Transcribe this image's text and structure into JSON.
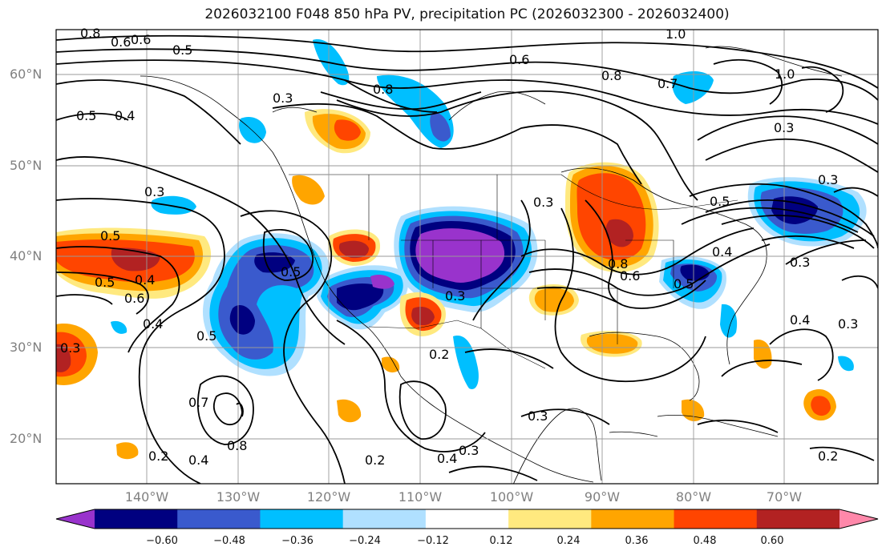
{
  "title": "2026032100 F048 850 hPa PV, precipitation PC (2026032300 - 2026032400)",
  "map": {
    "lat_labels": [
      "60°N",
      "50°N",
      "40°N",
      "30°N",
      "20°N"
    ],
    "lon_labels": [
      "140°W",
      "130°W",
      "120°W",
      "110°W",
      "100°W",
      "90°W",
      "80°W",
      "70°W"
    ],
    "contour_labels": [
      "0.8",
      "0.6",
      "0.6",
      "0.5",
      "0.5",
      "0.4",
      "0.3",
      "0.8",
      "0.6",
      "0.8",
      "0.7",
      "1.0",
      "0.3",
      "0.3",
      "0.5",
      "0.4",
      "0.5",
      "0.3",
      "0.5",
      "0.4",
      "0.5",
      "0.6",
      "0.3",
      "0.5",
      "0.3",
      "0.8",
      "0.6",
      "0.4",
      "0.5",
      "0.3",
      "0.4",
      "0.3",
      "0.2",
      "0.3",
      "0.3",
      "0.7",
      "0.8",
      "0.4",
      "0.2",
      "0.2",
      "0.4",
      "0.3",
      "0.2",
      "1.0"
    ]
  },
  "colorbar": {
    "colors": [
      "#9933cc",
      "#000080",
      "#3a5acd",
      "#00bfff",
      "#b0e0ff",
      "#ffffff",
      "#ffe97f",
      "#ffa500",
      "#ff4500",
      "#b22222",
      "#ff88aa"
    ],
    "tick_labels": [
      "−0.60",
      "−0.48",
      "−0.36",
      "−0.24",
      "−0.12",
      "0.12",
      "0.24",
      "0.36",
      "0.48",
      "0.60"
    ]
  }
}
